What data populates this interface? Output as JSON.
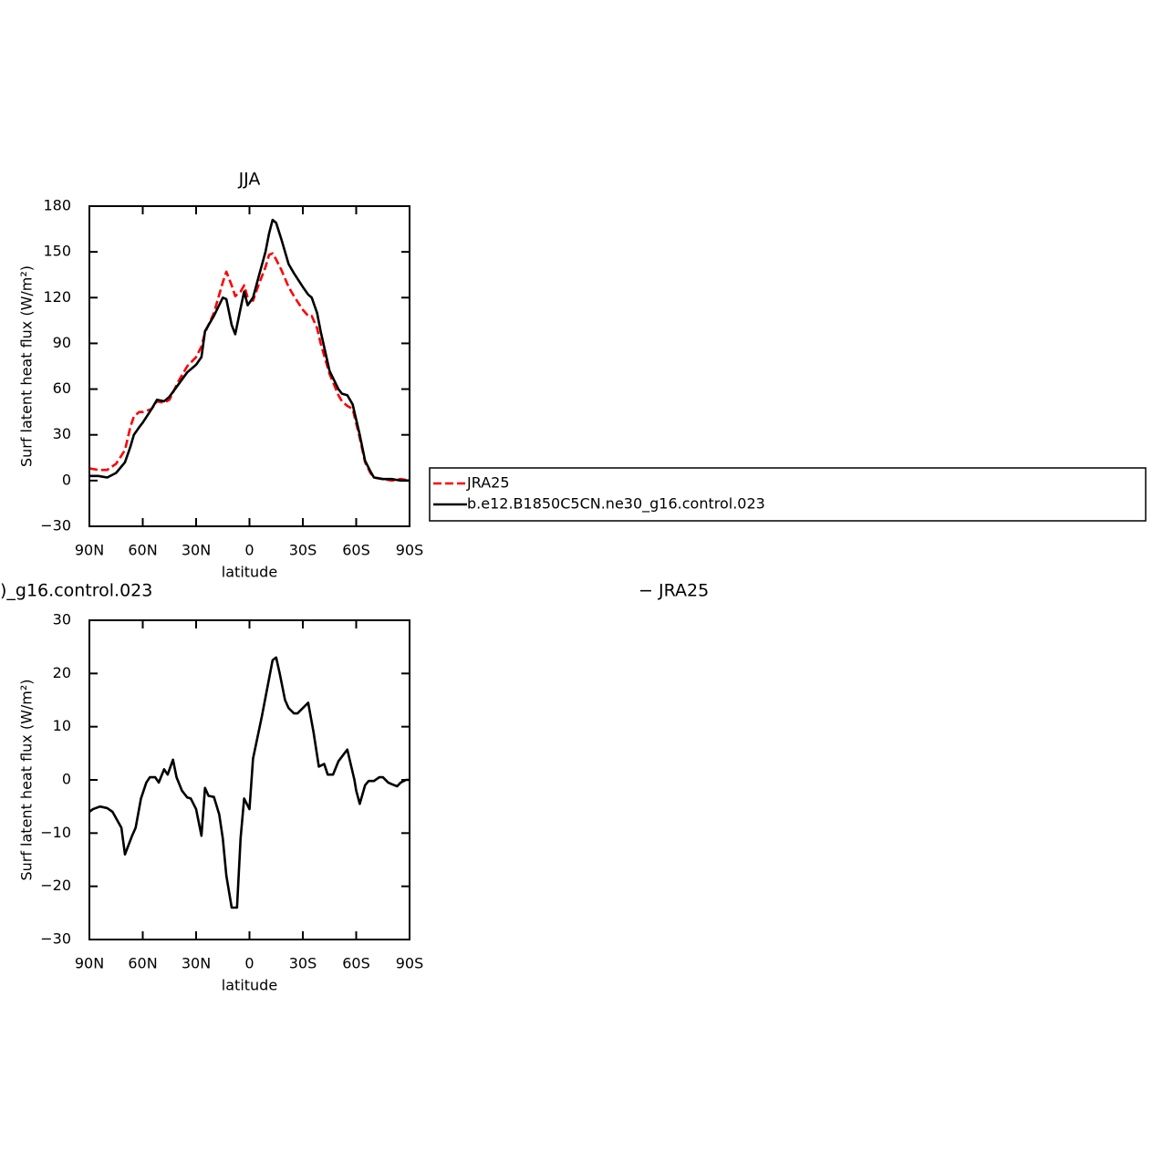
{
  "chart_data": [
    {
      "type": "line",
      "title": "JJA",
      "xlabel": "latitude",
      "ylabel": "Surf latent heat flux (W/m²)",
      "xlim": [
        90,
        -90
      ],
      "xticks": [
        {
          "value": 90,
          "label": "90N"
        },
        {
          "value": 60,
          "label": "60N"
        },
        {
          "value": 30,
          "label": "30N"
        },
        0,
        {
          "value": -30,
          "label": "30S"
        },
        {
          "value": -60,
          "label": "60S"
        },
        {
          "value": -90,
          "label": "90S"
        }
      ],
      "ylim": [
        -30,
        180
      ],
      "yticks": [
        {
          "value": -30,
          "label": "−30"
        },
        0,
        30,
        60,
        90,
        120,
        150,
        180
      ],
      "legend": true,
      "x": [
        90,
        85,
        80,
        75,
        70,
        67,
        65,
        62,
        60,
        55,
        52,
        48,
        45,
        40,
        35,
        30,
        27,
        25,
        20,
        15,
        13,
        10,
        8,
        5,
        3,
        1,
        -2,
        -5,
        -9,
        -11,
        -13,
        -15,
        -18,
        -22,
        -25,
        -30,
        -33,
        -35,
        -38,
        -40,
        -45,
        -50,
        -52,
        -55,
        -58,
        -62,
        -65,
        -68,
        -70,
        -75,
        -80,
        -85,
        -90
      ],
      "series": [
        {
          "name": "JRA25",
          "color": "#ff0000",
          "linestyle": "dashed",
          "values": [
            8,
            7,
            7,
            11,
            20,
            35,
            42,
            45,
            45,
            47,
            52,
            51,
            53,
            65,
            75,
            81,
            88,
            97,
            110,
            130,
            137,
            128,
            121,
            124,
            128,
            120,
            118,
            128,
            140,
            148,
            149,
            145,
            138,
            127,
            121,
            112,
            108,
            108,
            100,
            90,
            70,
            56,
            52,
            49,
            47,
            28,
            12,
            5,
            2,
            1,
            0,
            1,
            0
          ]
        },
        {
          "name": "b.e12.B1850C5CN.ne30_g16.control.023",
          "color": "#000000",
          "linestyle": "solid",
          "values": [
            3,
            3,
            2,
            5,
            12,
            22,
            30,
            35,
            38,
            47,
            53,
            52,
            55,
            63,
            71,
            76,
            81,
            98,
            108,
            120,
            119,
            102,
            96,
            113,
            124,
            115,
            120,
            133,
            150,
            162,
            171,
            169,
            158,
            142,
            136,
            127,
            122,
            120,
            110,
            98,
            72,
            60,
            57,
            56,
            50,
            30,
            13,
            6,
            2,
            1,
            1,
            0,
            0
          ]
        }
      ]
    },
    {
      "type": "line",
      "title_parts": [
        ")_g16.control.023",
        "− JRA25"
      ],
      "xlabel": "latitude",
      "ylabel": "Surf latent heat flux (W/m²)",
      "xlim": [
        90,
        -90
      ],
      "xticks": [
        {
          "value": 90,
          "label": "90N"
        },
        {
          "value": 60,
          "label": "60N"
        },
        {
          "value": 30,
          "label": "30N"
        },
        0,
        {
          "value": -30,
          "label": "30S"
        },
        {
          "value": -60,
          "label": "60S"
        },
        {
          "value": -90,
          "label": "90S"
        }
      ],
      "ylim": [
        -30,
        30
      ],
      "yticks": [
        {
          "value": -30,
          "label": "−30"
        },
        {
          "value": -20,
          "label": "−20"
        },
        {
          "value": -10,
          "label": "−10"
        },
        0,
        10,
        20,
        30
      ],
      "legend": false,
      "x": [
        90,
        88,
        84,
        80,
        77,
        72,
        70,
        66,
        64,
        61,
        58,
        56,
        53,
        51,
        48,
        46,
        43,
        41,
        38,
        35,
        33,
        30,
        27,
        25,
        23,
        20,
        17,
        15,
        13,
        10,
        7,
        5,
        3,
        0,
        -2,
        -7,
        -13,
        -15,
        -17,
        -20,
        -22,
        -25,
        -27,
        -30,
        -33,
        -36,
        -39,
        -42,
        -44,
        -47,
        -50,
        -55,
        -59,
        -60,
        -62,
        -65,
        -67,
        -70,
        -73,
        -75,
        -78,
        -80,
        -83,
        -85,
        -88,
        -90
      ],
      "series": [
        {
          "color": "#000000",
          "linestyle": "solid",
          "values": [
            -6,
            -5.5,
            -5,
            -5.3,
            -6,
            -9,
            -14,
            -10.5,
            -9,
            -3.5,
            -0.5,
            0.5,
            0.5,
            -0.5,
            2,
            1,
            3.8,
            0.5,
            -2,
            -3.3,
            -3.5,
            -5.5,
            -10.5,
            -1.5,
            -3,
            -3.2,
            -6.5,
            -11,
            -18,
            -24,
            -24,
            -11,
            -3.5,
            -5.5,
            4,
            12,
            22.5,
            23,
            20,
            15,
            13.5,
            12.5,
            12.5,
            13.5,
            14.5,
            9,
            2.5,
            3,
            1,
            1,
            3.5,
            5.7,
            0,
            -2,
            -4.5,
            -1,
            -0.2,
            -0.2,
            0.5,
            0.5,
            -0.5,
            -0.8,
            -1.2,
            -0.5,
            0,
            0
          ]
        }
      ]
    }
  ]
}
